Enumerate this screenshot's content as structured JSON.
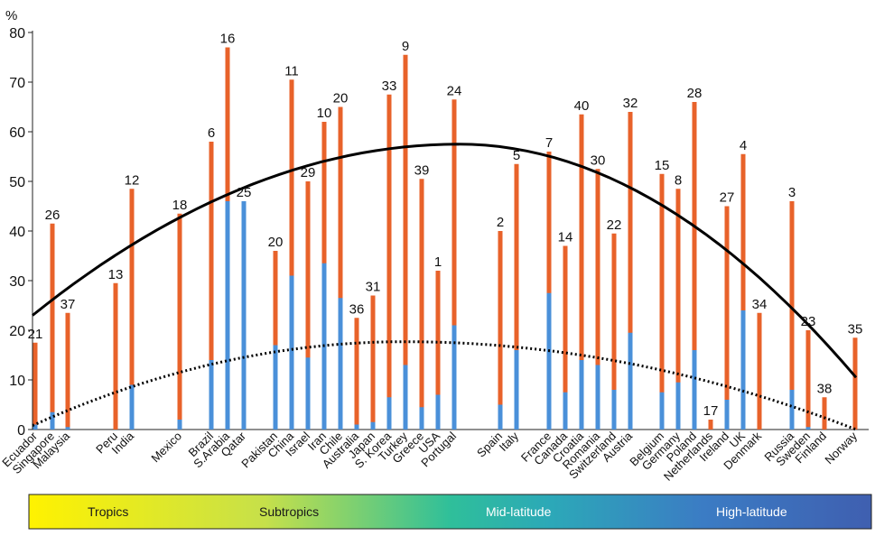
{
  "chart_data": {
    "type": "bar",
    "ylabel": "%",
    "ylim": [
      0,
      80
    ],
    "yticks": [
      0,
      10,
      20,
      30,
      40,
      50,
      60,
      70,
      80
    ],
    "grid": false,
    "bars": [
      {
        "country": "Ecuador",
        "rank": "21",
        "total": 17.5,
        "inner": 1
      },
      {
        "country": "Singapore",
        "rank": "26",
        "total": 41.5,
        "inner": 3.5
      },
      {
        "country": "Malaysia",
        "rank": "37",
        "total": 23.5,
        "inner": 0.5
      },
      {
        "country": "Peru",
        "rank": "13",
        "total": 29.5,
        "inner": 0
      },
      {
        "country": "India",
        "rank": "12",
        "total": 48.5,
        "inner": 9
      },
      {
        "country": "Mexico",
        "rank": "18",
        "total": 43.5,
        "inner": 2
      },
      {
        "country": "Brazil",
        "rank": "6",
        "total": 58,
        "inner": 14
      },
      {
        "country": "S.Arabia",
        "rank": "16",
        "total": 77,
        "inner": 46
      },
      {
        "country": "Qatar",
        "rank": "25",
        "total": 46,
        "inner": 46
      },
      {
        "country": "Pakistan",
        "rank": "20",
        "total": 36,
        "inner": 17
      },
      {
        "country": "China",
        "rank": "11",
        "total": 70.5,
        "inner": 31
      },
      {
        "country": "Israel",
        "rank": "29",
        "total": 50,
        "inner": 14.5
      },
      {
        "country": "Iran",
        "rank": "10",
        "total": 62,
        "inner": 33.5
      },
      {
        "country": "Chile",
        "rank": "20",
        "total": 65,
        "inner": 26.5
      },
      {
        "country": "Australia",
        "rank": "36",
        "total": 22.5,
        "inner": 1
      },
      {
        "country": "Japan",
        "rank": "31",
        "total": 27,
        "inner": 1.5
      },
      {
        "country": "S. Korea",
        "rank": "33",
        "total": 67.5,
        "inner": 6.5
      },
      {
        "country": "Turkey",
        "rank": "9",
        "total": 75.5,
        "inner": 13
      },
      {
        "country": "Greece",
        "rank": "39",
        "total": 50.5,
        "inner": 4.5
      },
      {
        "country": "USA",
        "rank": "1",
        "total": 32,
        "inner": 7
      },
      {
        "country": "Portugal",
        "rank": "24",
        "total": 66.5,
        "inner": 21
      },
      {
        "country": "Spain",
        "rank": "2",
        "total": 40,
        "inner": 5
      },
      {
        "country": "Italy",
        "rank": "5",
        "total": 53.5,
        "inner": 16
      },
      {
        "country": "France",
        "rank": "7",
        "total": 56,
        "inner": 27.5
      },
      {
        "country": "Canada",
        "rank": "14",
        "total": 37,
        "inner": 7.5
      },
      {
        "country": "Croatia",
        "rank": "40",
        "total": 63.5,
        "inner": 14
      },
      {
        "country": "Romania",
        "rank": "30",
        "total": 52.5,
        "inner": 13
      },
      {
        "country": "Switzerland",
        "rank": "22",
        "total": 39.5,
        "inner": 8
      },
      {
        "country": "Austria",
        "rank": "32",
        "total": 64,
        "inner": 19.5
      },
      {
        "country": "Belgium",
        "rank": "15",
        "total": 51.5,
        "inner": 7.5
      },
      {
        "country": "Germany",
        "rank": "8",
        "total": 48.5,
        "inner": 9.5
      },
      {
        "country": "Poland",
        "rank": "28",
        "total": 66,
        "inner": 16
      },
      {
        "country": "Netherlands",
        "rank": "17",
        "total": 2,
        "inner": 0
      },
      {
        "country": "Ireland",
        "rank": "27",
        "total": 45,
        "inner": 6
      },
      {
        "country": "UK",
        "rank": "4",
        "total": 55.5,
        "inner": 24
      },
      {
        "country": "Denmark",
        "rank": "34",
        "total": 23.5,
        "inner": 0
      },
      {
        "country": "Russia",
        "rank": "3",
        "total": 46,
        "inner": 8
      },
      {
        "country": "Sweden",
        "rank": "23",
        "total": 20,
        "inner": 0.5
      },
      {
        "country": "Finland",
        "rank": "38",
        "total": 6.5,
        "inner": 0
      },
      {
        "country": "Norway",
        "rank": "35",
        "total": 18.5,
        "inner": 0
      }
    ],
    "outer_color": "#e8622a",
    "inner_color": "#4a90d9",
    "trend_total": {
      "peak": 57.5
    },
    "trend_inner": {
      "peak": 17.7
    },
    "zones": [
      {
        "label": "Tropics",
        "color": "#1a1a1a"
      },
      {
        "label": "Subtropics",
        "color": "#1a1a1a"
      },
      {
        "label": "Mid-latitude",
        "color": "#ffffff"
      },
      {
        "label": "High-latitude",
        "color": "#ffffff"
      }
    ]
  }
}
